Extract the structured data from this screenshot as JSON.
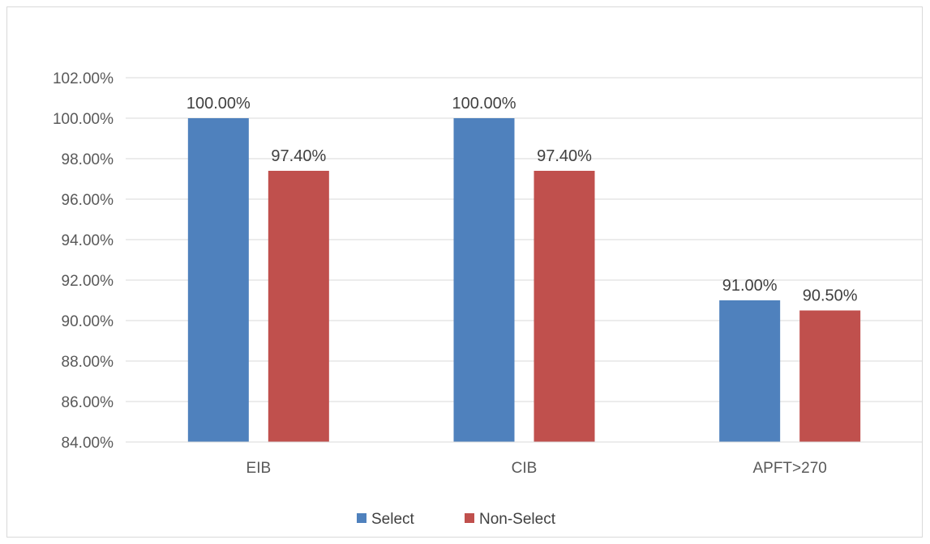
{
  "chart_data": {
    "type": "bar",
    "categories": [
      "EIB",
      "CIB",
      "APFT>270"
    ],
    "series": [
      {
        "name": "Select",
        "values": [
          100.0,
          100.0,
          91.0
        ],
        "labels": [
          "100.00%",
          "100.00%",
          "91.00%"
        ],
        "color": "#4f81bd"
      },
      {
        "name": "Non-Select",
        "values": [
          97.4,
          97.4,
          90.5
        ],
        "labels": [
          "97.40%",
          "97.40%",
          "90.50%"
        ],
        "color": "#c0504d"
      }
    ],
    "ylim": [
      84,
      102
    ],
    "yticks": [
      "84.00%",
      "86.00%",
      "88.00%",
      "90.00%",
      "92.00%",
      "94.00%",
      "96.00%",
      "98.00%",
      "100.00%",
      "102.00%"
    ],
    "grid": true,
    "legend_position": "bottom"
  }
}
